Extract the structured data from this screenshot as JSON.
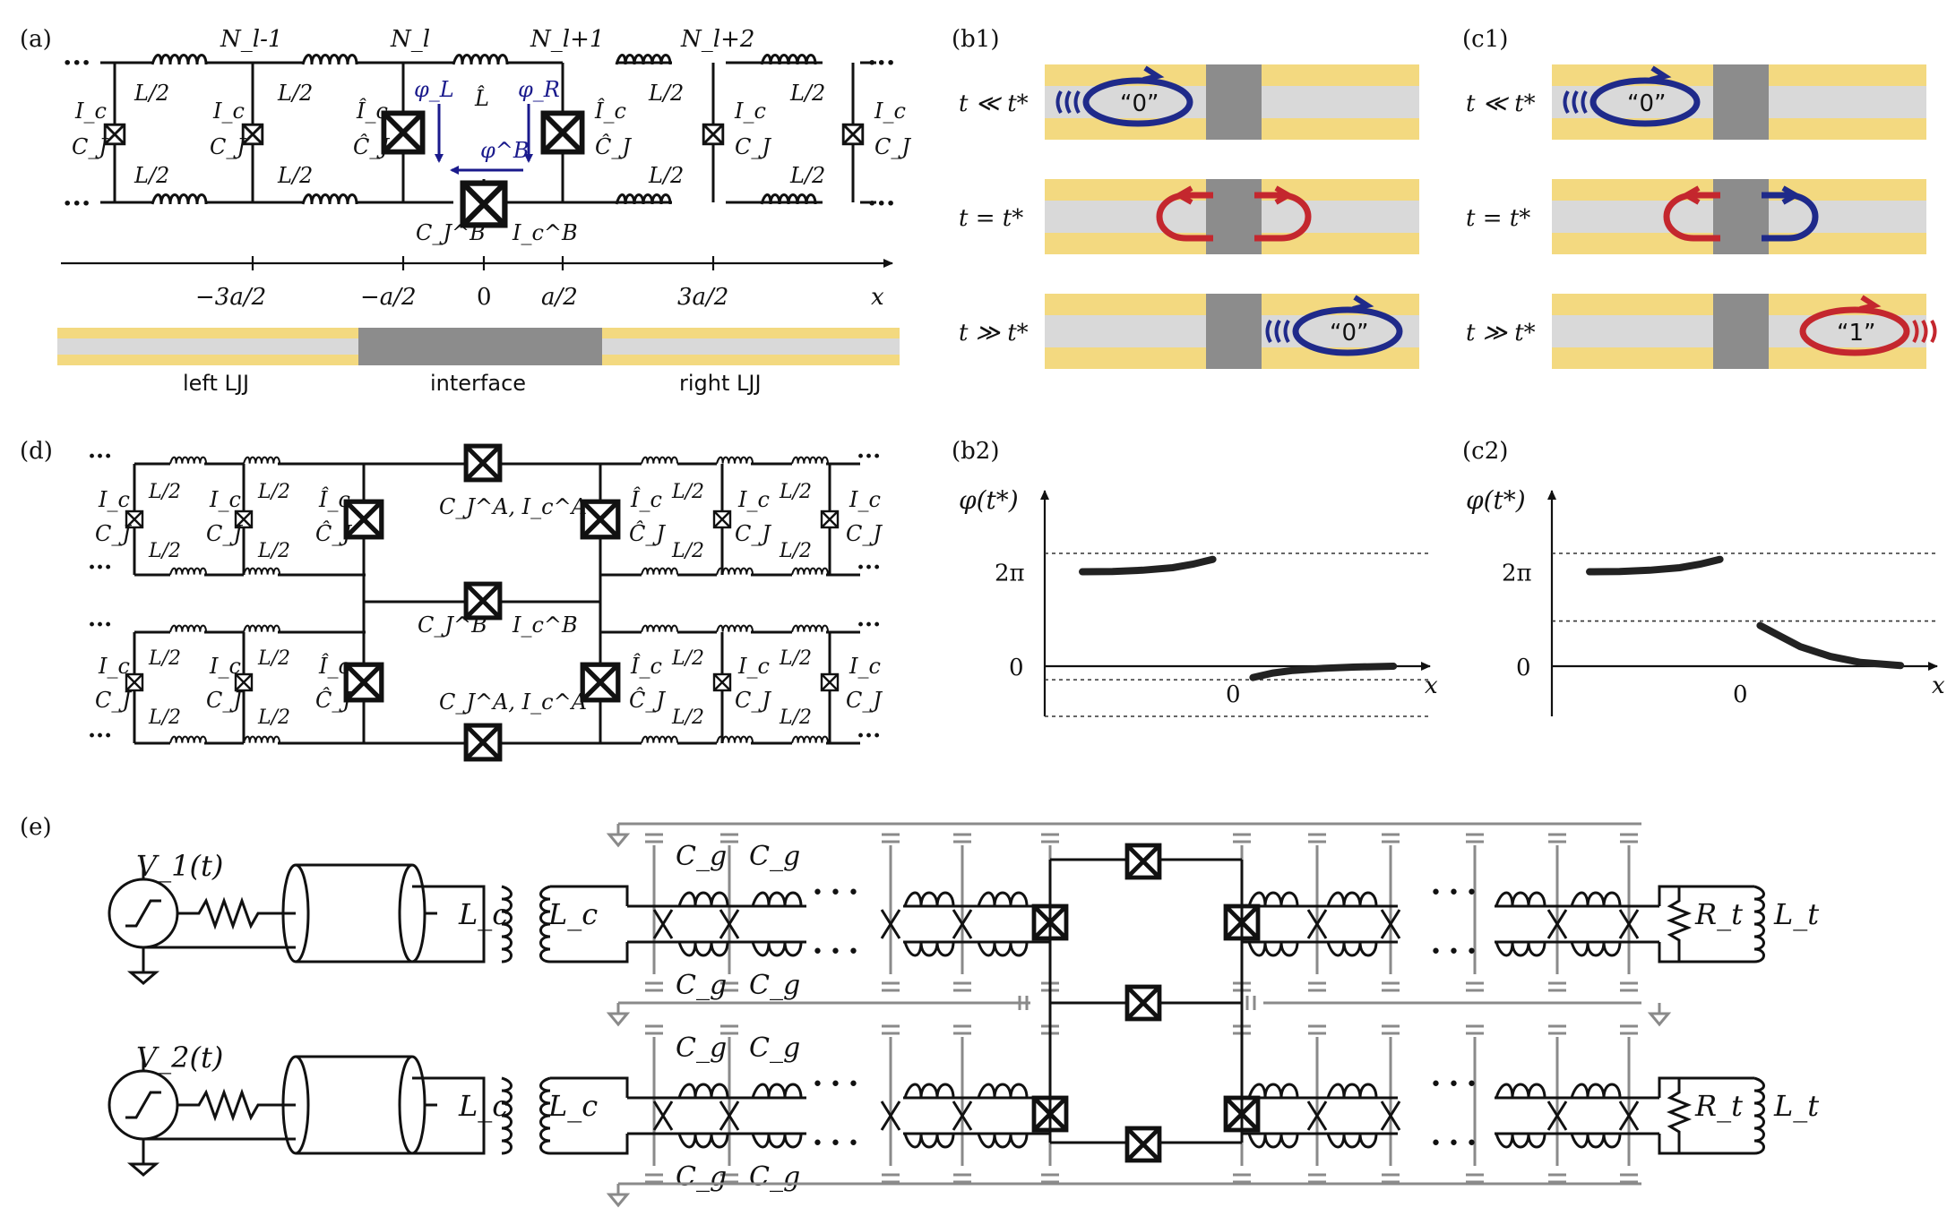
{
  "panel_labels": {
    "a": "(a)",
    "b1": "(b1)",
    "c1": "(c1)",
    "d": "(d)",
    "b2": "(b2)",
    "c2": "(c2)",
    "e": "(e)"
  },
  "panel_a": {
    "node_labels": [
      "N_l-1",
      "N_l",
      "N_l+1",
      "N_l+2"
    ],
    "inductor_label": "L/2",
    "cell_ic": "I_c",
    "cell_cj": "C_J",
    "interface_labels": {
      "ic_hat": "Î_c",
      "cj_hat": "Ĉ_J",
      "l_hat": "L̂",
      "phi_l": "φ_L",
      "phi_r": "φ_R",
      "phi_b": "φ^B",
      "cjb": "C_J^B",
      "icb": "I_c^B"
    },
    "axis_ticks": [
      "−3a/2",
      "−a/2",
      "0",
      "a/2",
      "3a/2"
    ],
    "axis_var": "x",
    "bar_labels": [
      "left LJJ",
      "interface",
      "right LJJ"
    ]
  },
  "panel_b1": {
    "rows": [
      {
        "time": "t ≪ t*",
        "fluxon": "“0”"
      },
      {
        "time": "t = t*",
        "fluxon": ""
      },
      {
        "time": "t ≫ t*",
        "fluxon": "“0”"
      }
    ]
  },
  "panel_c1": {
    "rows": [
      {
        "time": "t ≪ t*",
        "fluxon": "“0”"
      },
      {
        "time": "t = t*",
        "fluxon": ""
      },
      {
        "time": "t ≫ t*",
        "fluxon": "“1”"
      }
    ]
  },
  "panel_d": {
    "labels": {
      "cja_ica": "C_J^A, I_c^A",
      "cjb": "C_J^B",
      "icb": "I_c^B",
      "ic": "I_c",
      "cj": "C_J",
      "ic_hat": "Î_c",
      "cj_hat": "Ĉ_J",
      "half_l": "L/2"
    }
  },
  "chart_data": [
    {
      "type": "line",
      "panel": "b2",
      "ylabel": "φ(t*)",
      "xlabel": "x",
      "ytick_labels": [
        "2π",
        "0"
      ],
      "xtick_labels": [
        "0"
      ],
      "series": [
        {
          "x": [
            -1.5,
            -1.2,
            -0.9,
            -0.6,
            -0.4,
            -0.2
          ],
          "y": [
            6.28,
            6.3,
            6.38,
            6.55,
            6.78,
            7.1
          ]
        },
        {
          "x": [
            0.2,
            0.4,
            0.6,
            0.9,
            1.2,
            1.6
          ],
          "y": [
            -0.75,
            -0.45,
            -0.28,
            -0.14,
            -0.06,
            0.0
          ]
        }
      ],
      "dashed_levels": [
        7.5,
        -0.9
      ]
    },
    {
      "type": "line",
      "panel": "c2",
      "ylabel": "φ(t*)",
      "xlabel": "x",
      "ytick_labels": [
        "2π",
        "0"
      ],
      "xtick_labels": [
        "0"
      ],
      "series": [
        {
          "x": [
            -1.5,
            -1.2,
            -0.9,
            -0.6,
            -0.4,
            -0.2
          ],
          "y": [
            6.28,
            6.3,
            6.38,
            6.55,
            6.78,
            7.1
          ]
        },
        {
          "x": [
            0.2,
            0.4,
            0.6,
            0.9,
            1.2,
            1.6
          ],
          "y": [
            2.7,
            2.0,
            1.3,
            0.65,
            0.25,
            0.05
          ]
        }
      ],
      "dashed_levels": [
        7.5,
        3.0
      ]
    }
  ],
  "panel_e": {
    "sources": [
      "V_1(t)",
      "V_2(t)"
    ],
    "cap_label": "C_g",
    "lc": "L_c",
    "rt": "R_t",
    "lt": "L_t"
  },
  "colors": {
    "gold": "#f3d980",
    "grey_band": "#d9d9d9",
    "interface": "#8c8c8c",
    "blue": "#1f2a8a",
    "red": "#c4272e",
    "gray_wire": "#8a8a8a"
  }
}
